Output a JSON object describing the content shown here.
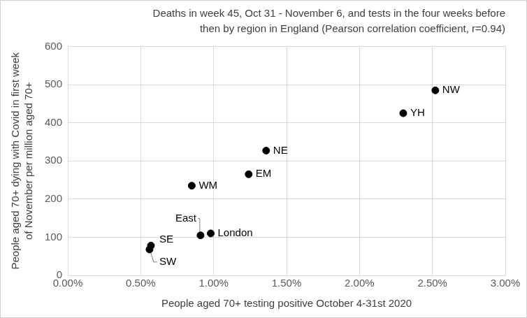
{
  "chart_data": {
    "type": "scatter",
    "title": [
      "Deaths in week 45, Oct 31 - November 6, and tests in the four weeks before",
      "then by region in England (Pearson correlation coefficient, r=0.94)"
    ],
    "x_label": "People aged 70+ testing positive October 4-31st 2020",
    "y_label": [
      "People aged 70+ dying with Covid in first week",
      "of November per million aged 70+"
    ],
    "point_labels": [
      "NW",
      "YH",
      "NE",
      "EM",
      "WM",
      "East",
      "London",
      "SE",
      "SW"
    ],
    "x": [
      2.52,
      2.3,
      1.36,
      1.24,
      0.85,
      0.91,
      0.98,
      0.57,
      0.56
    ],
    "values": [
      485,
      425,
      327,
      265,
      235,
      105,
      110,
      78,
      68
    ],
    "color": "#000000",
    "marker": "circle",
    "xlim": [
      0,
      3
    ],
    "xticks": [
      {
        "value": 0,
        "label": "0.00%"
      },
      {
        "value": 0.5,
        "label": "0.50%"
      },
      {
        "value": 1,
        "label": "1.00%"
      },
      {
        "value": 1.5,
        "label": "1.50%"
      },
      {
        "value": 2,
        "label": "2.00%"
      },
      {
        "value": 2.5,
        "label": "2.50%"
      },
      {
        "value": 3,
        "label": "3.00%"
      }
    ],
    "ylim": [
      0,
      600
    ],
    "yticks": [
      0,
      100,
      200,
      300,
      400,
      500,
      600
    ],
    "grid": true
  }
}
